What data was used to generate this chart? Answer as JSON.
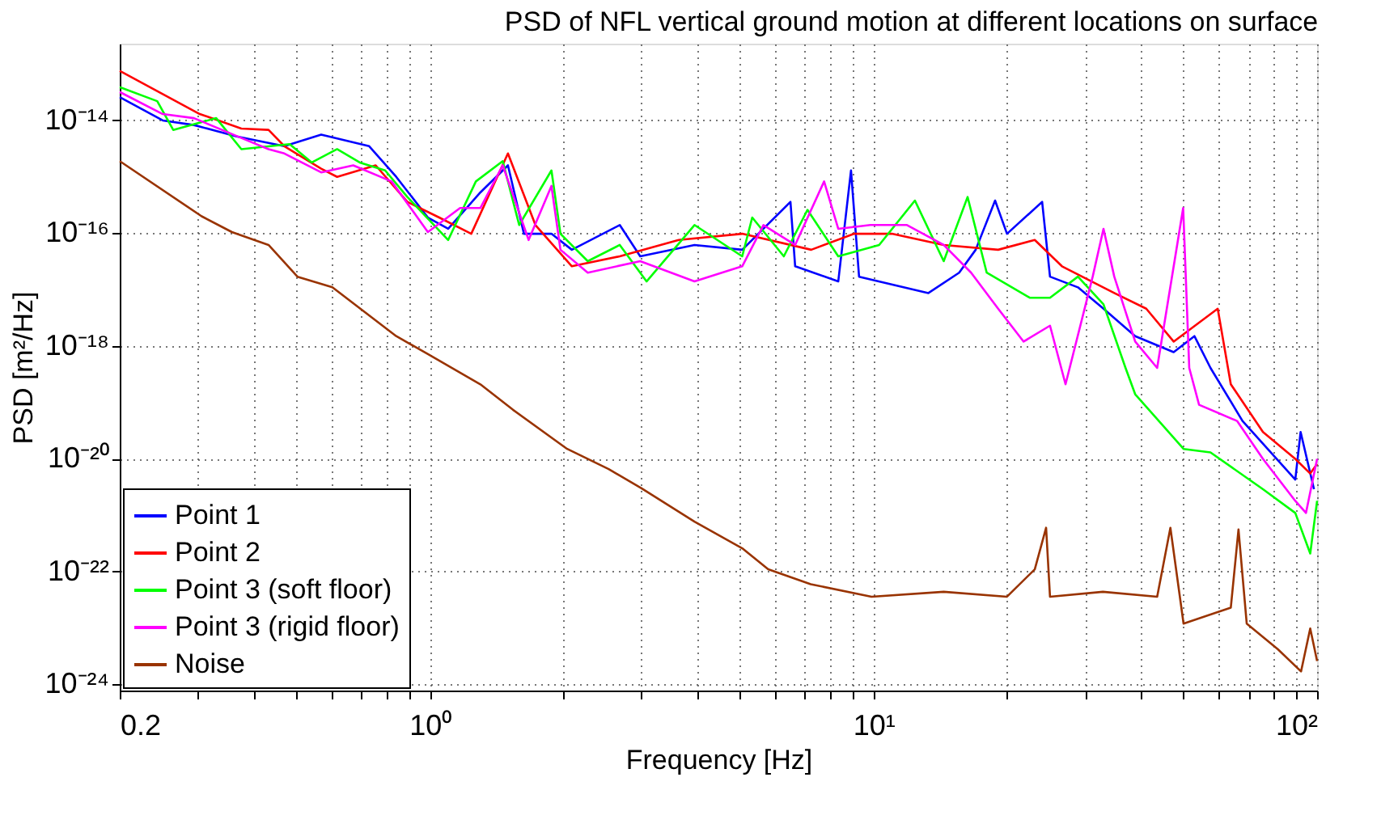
{
  "chart_data": {
    "type": "line",
    "title": "PSD of NFL vertical ground motion at different locations on surface",
    "xlabel": "Frequency [Hz]",
    "ylabel": "PSD [m²/Hz]",
    "log": "xy",
    "grid": true,
    "legend": "bottom left",
    "line_style": "solid",
    "marker": "none",
    "xlim": [
      0.2,
      100
    ],
    "ylim": [
      7.8e-25,
      2.3e-13
    ],
    "xticks": [
      {
        "value": 0.2,
        "label": "0.2"
      },
      {
        "value": 0.3,
        "label": null
      },
      {
        "value": 0.4,
        "label": null
      },
      {
        "value": 0.5,
        "label": null
      },
      {
        "value": 0.6,
        "label": null
      },
      {
        "value": 0.7,
        "label": null
      },
      {
        "value": 0.8,
        "label": null
      },
      {
        "value": 0.9,
        "label": null
      },
      {
        "value": 1,
        "label": "10⁰"
      },
      {
        "value": 2,
        "label": null
      },
      {
        "value": 3,
        "label": null
      },
      {
        "value": 4,
        "label": null
      },
      {
        "value": 5,
        "label": null
      },
      {
        "value": 6,
        "label": null
      },
      {
        "value": 7,
        "label": null
      },
      {
        "value": 8,
        "label": null
      },
      {
        "value": 9,
        "label": null
      },
      {
        "value": 10,
        "label": "10¹"
      },
      {
        "value": 20,
        "label": null
      },
      {
        "value": 30,
        "label": null
      },
      {
        "value": 40,
        "label": null
      },
      {
        "value": 50,
        "label": null
      },
      {
        "value": 60,
        "label": null
      },
      {
        "value": 70,
        "label": null
      },
      {
        "value": 80,
        "label": null
      },
      {
        "value": 90,
        "label": null
      },
      {
        "value": 100,
        "label": "10²"
      }
    ],
    "yticks": [
      {
        "value": 1e-24,
        "label": "10⁻²⁴"
      },
      {
        "value": 1e-22,
        "label": "10⁻²²"
      },
      {
        "value": 1e-20,
        "label": "10⁻²⁰"
      },
      {
        "value": 1e-18,
        "label": "10⁻¹⁸"
      },
      {
        "value": 1e-16,
        "label": "10⁻¹⁶"
      },
      {
        "value": 1e-14,
        "label": "10⁻¹⁴"
      }
    ],
    "series": [
      {
        "name": "Point 1",
        "color": "#0000ff",
        "x": [
          0.2,
          0.25,
          0.294,
          0.367,
          0.47,
          0.569,
          0.73,
          0.84,
          0.99,
          1.1,
          1.3,
          1.5,
          1.63,
          1.88,
          2.09,
          2.68,
          2.98,
          3.95,
          5.06,
          6.5,
          6.66,
          8.33,
          8.9,
          9.28,
          13.3,
          15.6,
          17.0,
          18.8,
          20.0,
          24.0,
          25.0,
          28.9,
          33.0,
          38.9,
          47.5,
          52.9,
          57.5,
          67.9,
          89.3,
          91.8,
          98.4
        ],
        "values": [
          2.6e-14,
          1e-14,
          8.3e-15,
          5.2e-15,
          3.5e-15,
          5.6e-15,
          3.5e-15,
          1e-15,
          1.9e-16,
          1.2e-16,
          5.3e-16,
          1.6e-15,
          9.8e-17,
          9.8e-17,
          5.1e-17,
          1.4e-16,
          3.9e-17,
          6.2e-17,
          5.1e-17,
          3.6e-16,
          2.6e-17,
          1.4e-17,
          1.3e-15,
          1.7e-17,
          8.7e-18,
          2e-17,
          5.1e-17,
          3.8e-16,
          9.8e-17,
          3.6e-16,
          1.7e-17,
          1.1e-17,
          4.6e-18,
          1.5e-18,
          7.8e-19,
          1.5e-18,
          4.1e-19,
          4.7e-20,
          4.3e-21,
          3e-20,
          2.9e-21
        ]
      },
      {
        "name": "Point 2",
        "color": "#ff0000",
        "x": [
          0.2,
          0.303,
          0.376,
          0.433,
          0.47,
          0.569,
          0.618,
          0.755,
          0.89,
          1.05,
          1.24,
          1.5,
          1.73,
          2.09,
          2.68,
          3.64,
          5.06,
          7.24,
          9.05,
          11.0,
          14.4,
          19.1,
          23.1,
          26.6,
          34.9,
          41.2,
          47.5,
          59.7,
          63.9,
          75.5,
          89.3,
          96.5,
          100
        ],
        "values": [
          7.6e-14,
          1.3e-14,
          7.2e-15,
          6.8e-15,
          3.5e-15,
          1.4e-15,
          1e-15,
          1.6e-15,
          3.6e-16,
          1.9e-16,
          9.8e-17,
          2.6e-15,
          1.4e-16,
          2.6e-17,
          3.9e-17,
          7.6e-17,
          9.8e-17,
          5.1e-17,
          9.8e-17,
          9.8e-17,
          6.2e-17,
          5.1e-17,
          7.6e-17,
          2.6e-17,
          8.7e-18,
          4.6e-18,
          1.2e-18,
          4.6e-18,
          2.1e-19,
          3e-20,
          1e-20,
          5.5e-21,
          8.1e-21
        ]
      },
      {
        "name": "Point 3 (soft floor)",
        "color": "#00ff00",
        "x": [
          0.2,
          0.243,
          0.264,
          0.33,
          0.376,
          0.483,
          0.542,
          0.618,
          0.695,
          0.793,
          0.89,
          1.1,
          1.27,
          1.46,
          1.59,
          1.88,
          1.97,
          2.27,
          2.68,
          3.08,
          3.95,
          5.06,
          5.33,
          6.28,
          7.1,
          8.33,
          10.3,
          12.4,
          14.4,
          16.3,
          18.0,
          22.5,
          25.0,
          28.9,
          33.0,
          37.0,
          38.9,
          50,
          57.5,
          75.5,
          89.3,
          96.5,
          100
        ],
        "values": [
          3.9e-14,
          2.2e-14,
          6.8e-15,
          1.1e-14,
          3.1e-15,
          3.8e-15,
          1.8e-15,
          3.1e-15,
          1.8e-15,
          1.3e-15,
          4.4e-16,
          7.6e-17,
          8.3e-16,
          1.9e-15,
          1.4e-16,
          1.3e-15,
          9.8e-17,
          3.2e-17,
          6.2e-17,
          1.4e-17,
          1.4e-16,
          3.9e-17,
          1.9e-16,
          3.9e-17,
          2.6e-16,
          3.9e-17,
          6.2e-17,
          3.8e-16,
          3.2e-17,
          4.4e-16,
          2e-17,
          7.2e-18,
          7.2e-18,
          1.7e-17,
          5.5e-18,
          4.1e-19,
          1.4e-19,
          1.5e-20,
          1.3e-20,
          2.9e-21,
          1.1e-21,
          2.1e-22,
          1.8e-21
        ]
      },
      {
        "name": "Point 3 (rigid floor)",
        "color": "#ff00ff",
        "x": [
          0.2,
          0.25,
          0.294,
          0.376,
          0.433,
          0.47,
          0.569,
          0.672,
          0.82,
          0.99,
          1.17,
          1.3,
          1.46,
          1.67,
          1.88,
          1.97,
          2.27,
          2.98,
          3.95,
          5.06,
          5.65,
          6.66,
          7.74,
          8.33,
          9.84,
          11.9,
          14.4,
          16.6,
          19.1,
          21.8,
          25.0,
          27.1,
          31.2,
          33.0,
          34.9,
          38.9,
          43.6,
          49.9,
          51.5,
          54.2,
          66,
          75.5,
          89.3,
          94.4,
          100
        ],
        "values": [
          3.2e-14,
          1.3e-14,
          1.1e-14,
          4.9e-15,
          3.1e-15,
          2.6e-15,
          1.2e-15,
          1.6e-15,
          8.3e-16,
          1.05e-16,
          2.8e-16,
          2.8e-16,
          1.6e-15,
          7.6e-17,
          6.9e-16,
          5.1e-17,
          2e-17,
          3.2e-17,
          1.4e-17,
          2.6e-17,
          1.4e-16,
          6.2e-17,
          8.3e-16,
          1.2e-16,
          1.4e-16,
          1.4e-16,
          6.2e-17,
          2e-17,
          4.6e-18,
          1.2e-18,
          2.3e-18,
          2.1e-19,
          1.7e-17,
          1.2e-16,
          1.7e-17,
          1.2e-18,
          4.1e-19,
          2.8e-16,
          4.1e-19,
          9.1e-20,
          4.7e-20,
          1e-20,
          1.8e-21,
          1.1e-21,
          1e-20
        ]
      },
      {
        "name": "Noise",
        "color": "#993300",
        "x": [
          0.2,
          0.306,
          0.358,
          0.433,
          0.503,
          0.603,
          0.84,
          0.99,
          1.3,
          1.54,
          2.04,
          2.53,
          3.0,
          3.95,
          5.06,
          5.79,
          7.22,
          9.9,
          14.4,
          20.0,
          23.1,
          24.5,
          25.0,
          32.9,
          43.6,
          46.7,
          50.0,
          63.9,
          66.5,
          69.4,
          81.6,
          92,
          96.5,
          100
        ],
        "values": [
          1.9e-15,
          2e-16,
          1.05e-16,
          6.2e-17,
          1.7e-17,
          1.1e-17,
          1.5e-18,
          7.2e-19,
          2.1e-19,
          7.4e-20,
          1.5e-20,
          6.6e-21,
          3e-21,
          7.7e-22,
          2.6e-22,
          1.1e-22,
          6e-23,
          3.6e-23,
          4.4e-23,
          3.6e-23,
          1.1e-22,
          6e-22,
          3.6e-23,
          4.4e-23,
          3.6e-23,
          6e-22,
          1.2e-23,
          2.3e-23,
          5.6e-22,
          1.2e-23,
          4.2e-24,
          1.7e-24,
          9.8e-24,
          2.6e-24
        ]
      }
    ]
  }
}
